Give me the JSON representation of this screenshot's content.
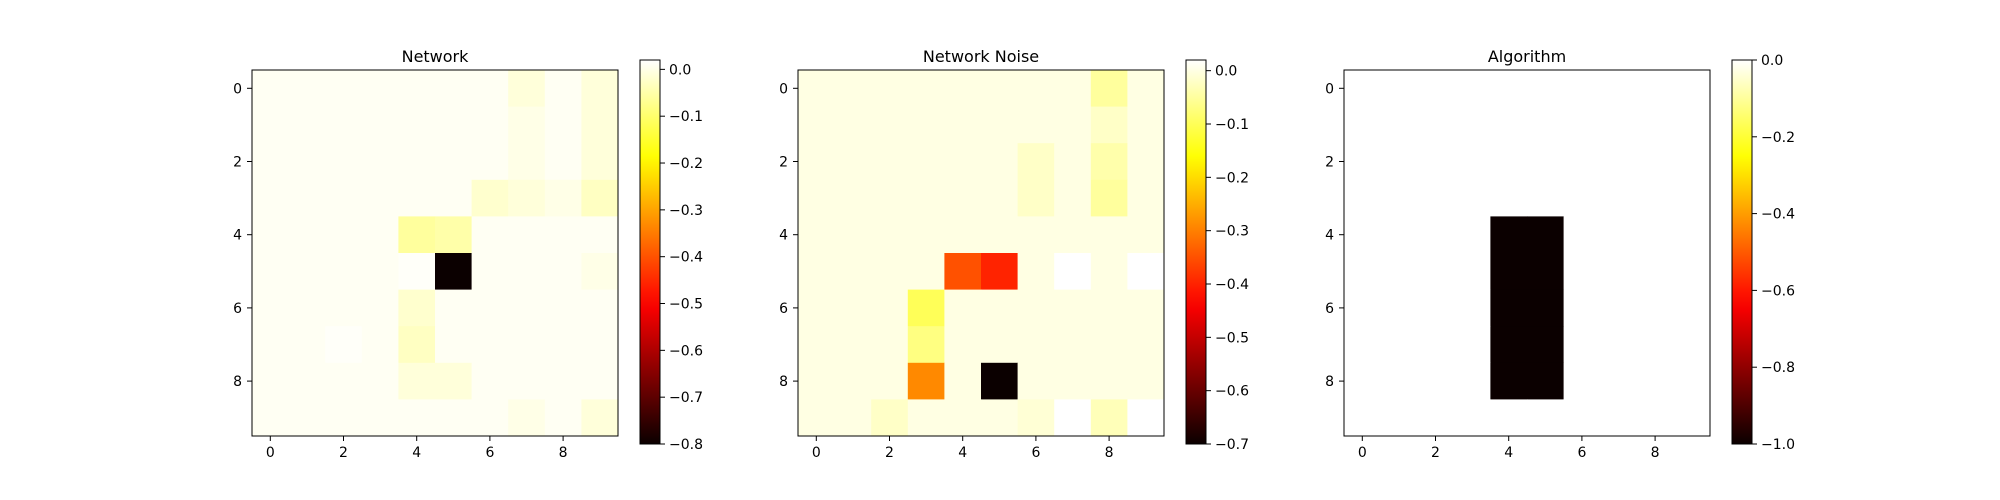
{
  "chart_data": [
    {
      "type": "heatmap",
      "title": "Network",
      "colormap": "hot",
      "x_ticks": [
        "0",
        "2",
        "4",
        "6",
        "8"
      ],
      "y_ticks": [
        "0",
        "2",
        "4",
        "6",
        "8"
      ],
      "vmin": -0.8,
      "vmax": 0.02,
      "colorbar_ticks": [
        "0.0",
        "−0.1",
        "−0.2",
        "−0.3",
        "−0.4",
        "−0.5",
        "−0.6",
        "−0.7",
        "−0.8"
      ],
      "colorbar_tick_values": [
        0.0,
        -0.1,
        -0.2,
        -0.3,
        -0.4,
        -0.5,
        -0.6,
        -0.7,
        -0.8
      ],
      "values": [
        [
          0.01,
          0.01,
          0.01,
          0.01,
          0.01,
          0.01,
          0.01,
          -0.01,
          0.01,
          -0.01
        ],
        [
          0.01,
          0.01,
          0.01,
          0.01,
          0.01,
          0.01,
          0.01,
          0.0,
          0.01,
          -0.01
        ],
        [
          0.01,
          0.01,
          0.01,
          0.01,
          0.01,
          0.01,
          0.01,
          0.0,
          0.01,
          -0.01
        ],
        [
          0.01,
          0.01,
          0.01,
          0.01,
          0.01,
          0.01,
          -0.02,
          -0.01,
          0.0,
          -0.03
        ],
        [
          0.01,
          0.01,
          0.01,
          0.01,
          -0.06,
          -0.05,
          0.01,
          0.01,
          0.01,
          0.01
        ],
        [
          0.01,
          0.01,
          0.01,
          0.01,
          0.015,
          -0.8,
          0.01,
          0.01,
          0.01,
          0.0
        ],
        [
          0.01,
          0.01,
          0.01,
          0.01,
          -0.02,
          0.01,
          0.01,
          0.01,
          0.01,
          0.01
        ],
        [
          0.01,
          0.01,
          0.015,
          0.01,
          -0.03,
          0.01,
          0.01,
          0.01,
          0.01,
          0.01
        ],
        [
          0.01,
          0.01,
          0.01,
          0.01,
          -0.01,
          -0.01,
          0.01,
          0.01,
          0.01,
          0.01
        ],
        [
          0.01,
          0.01,
          0.01,
          0.01,
          0.01,
          0.01,
          0.01,
          0.0,
          0.01,
          -0.01
        ]
      ]
    },
    {
      "type": "heatmap",
      "title": "Network Noise",
      "colormap": "hot",
      "x_ticks": [
        "0",
        "2",
        "4",
        "6",
        "8"
      ],
      "y_ticks": [
        "0",
        "2",
        "4",
        "6",
        "8"
      ],
      "vmin": -0.7,
      "vmax": 0.02,
      "colorbar_ticks": [
        "0.0",
        "−0.1",
        "−0.2",
        "−0.3",
        "−0.4",
        "−0.5",
        "−0.6",
        "−0.7"
      ],
      "colorbar_tick_values": [
        0.0,
        -0.1,
        -0.2,
        -0.3,
        -0.4,
        -0.5,
        -0.6,
        -0.7
      ],
      "values": [
        [
          0.0,
          0.0,
          0.0,
          0.0,
          0.0,
          0.0,
          0.0,
          0.0,
          -0.05,
          0.0
        ],
        [
          0.0,
          0.0,
          0.0,
          0.0,
          0.0,
          0.0,
          0.0,
          0.0,
          -0.02,
          0.0
        ],
        [
          0.0,
          0.0,
          0.0,
          0.0,
          0.0,
          0.0,
          -0.02,
          0.0,
          -0.04,
          0.0
        ],
        [
          0.0,
          0.0,
          0.0,
          0.0,
          0.0,
          0.0,
          -0.02,
          0.0,
          -0.05,
          0.0
        ],
        [
          0.0,
          0.0,
          0.0,
          0.0,
          0.0,
          0.0,
          0.0,
          0.0,
          0.0,
          0.0
        ],
        [
          0.0,
          0.0,
          0.0,
          0.0,
          -0.35,
          -0.4,
          0.0,
          0.02,
          0.0,
          0.02
        ],
        [
          0.0,
          0.0,
          0.0,
          -0.1,
          0.0,
          0.0,
          0.0,
          0.0,
          0.0,
          0.0
        ],
        [
          0.0,
          0.0,
          0.0,
          -0.07,
          0.0,
          0.0,
          0.0,
          0.0,
          0.0,
          0.0
        ],
        [
          0.0,
          0.0,
          0.0,
          -0.29,
          0.0,
          -0.7,
          0.0,
          0.0,
          0.0,
          0.0
        ],
        [
          0.0,
          0.0,
          -0.02,
          0.0,
          0.0,
          0.0,
          -0.01,
          0.02,
          -0.03,
          0.02
        ]
      ]
    },
    {
      "type": "heatmap",
      "title": "Algorithm",
      "colormap": "hot",
      "x_ticks": [
        "0",
        "2",
        "4",
        "6",
        "8"
      ],
      "y_ticks": [
        "0",
        "2",
        "4",
        "6",
        "8"
      ],
      "vmin": -1.0,
      "vmax": 0.0,
      "colorbar_ticks": [
        "0.0",
        "−0.2",
        "−0.4",
        "−0.6",
        "−0.8",
        "−1.0"
      ],
      "colorbar_tick_values": [
        0.0,
        -0.2,
        -0.4,
        -0.6,
        -0.8,
        -1.0
      ],
      "values": [
        [
          0,
          0,
          0,
          0,
          0,
          0,
          0,
          0,
          0,
          0
        ],
        [
          0,
          0,
          0,
          0,
          0,
          0,
          0,
          0,
          0,
          0
        ],
        [
          0,
          0,
          0,
          0,
          0,
          0,
          0,
          0,
          0,
          0
        ],
        [
          0,
          0,
          0,
          0,
          0,
          0,
          0,
          0,
          0,
          0
        ],
        [
          0,
          0,
          0,
          0,
          -1,
          -1,
          0,
          0,
          0,
          0
        ],
        [
          0,
          0,
          0,
          0,
          -1,
          -1,
          0,
          0,
          0,
          0
        ],
        [
          0,
          0,
          0,
          0,
          -1,
          -1,
          0,
          0,
          0,
          0
        ],
        [
          0,
          0,
          0,
          0,
          -1,
          -1,
          0,
          0,
          0,
          0
        ],
        [
          0,
          0,
          0,
          0,
          -1,
          -1,
          0,
          0,
          0,
          0
        ],
        [
          0,
          0,
          0,
          0,
          0,
          0,
          0,
          0,
          0,
          0
        ]
      ]
    }
  ]
}
